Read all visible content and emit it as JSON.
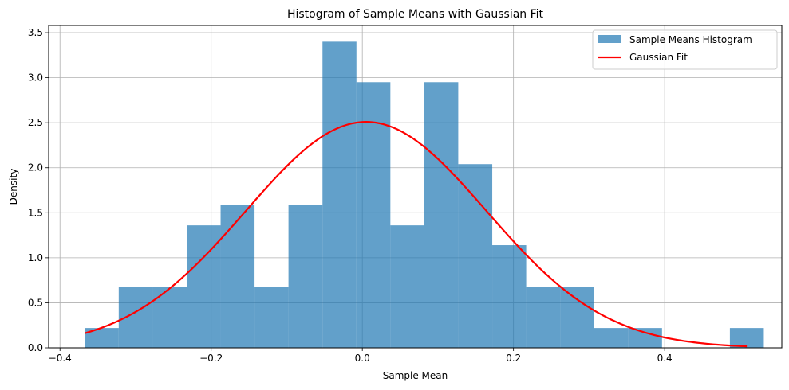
{
  "chart_data": {
    "type": "bar",
    "title": "Histogram of Sample Means with Gaussian Fit",
    "xlabel": "Sample Mean",
    "ylabel": "Density",
    "xlim": [
      -0.415,
      0.555
    ],
    "ylim": [
      0,
      3.58
    ],
    "xticks": [
      -0.4,
      -0.2,
      0.0,
      0.2,
      0.4
    ],
    "xtick_labels": [
      "−0.4",
      "−0.2",
      "0.0",
      "0.2",
      "0.4"
    ],
    "yticks": [
      0.0,
      0.5,
      1.0,
      1.5,
      2.0,
      2.5,
      3.0,
      3.5
    ],
    "ytick_labels": [
      "0.0",
      "0.5",
      "1.0",
      "1.5",
      "2.0",
      "2.5",
      "3.0",
      "3.5"
    ],
    "grid": true,
    "legend": "top-right",
    "histogram": {
      "name": "Sample Means Histogram",
      "color": "#1f77b4",
      "opacity": 0.7,
      "bin_edges": [
        -0.3672,
        -0.3223,
        -0.2773,
        -0.2324,
        -0.1875,
        -0.1426,
        -0.0977,
        -0.0527,
        -0.0078,
        0.0371,
        0.082,
        0.1269,
        0.1719,
        0.2168,
        0.2617,
        0.3066,
        0.3516,
        0.3965,
        0.4414,
        0.4863,
        0.5312
      ],
      "densities": [
        0.22,
        0.68,
        0.68,
        1.36,
        1.59,
        0.68,
        1.59,
        3.4,
        2.95,
        1.36,
        2.95,
        2.04,
        1.14,
        0.68,
        0.68,
        0.22,
        0.22,
        0.0,
        0.0,
        0.22
      ]
    },
    "gaussian": {
      "name": "Gaussian Fit",
      "color": "#ff0000",
      "mean": 0.005,
      "std": 0.159,
      "x_range": [
        -0.3672,
        0.5087
      ]
    }
  }
}
